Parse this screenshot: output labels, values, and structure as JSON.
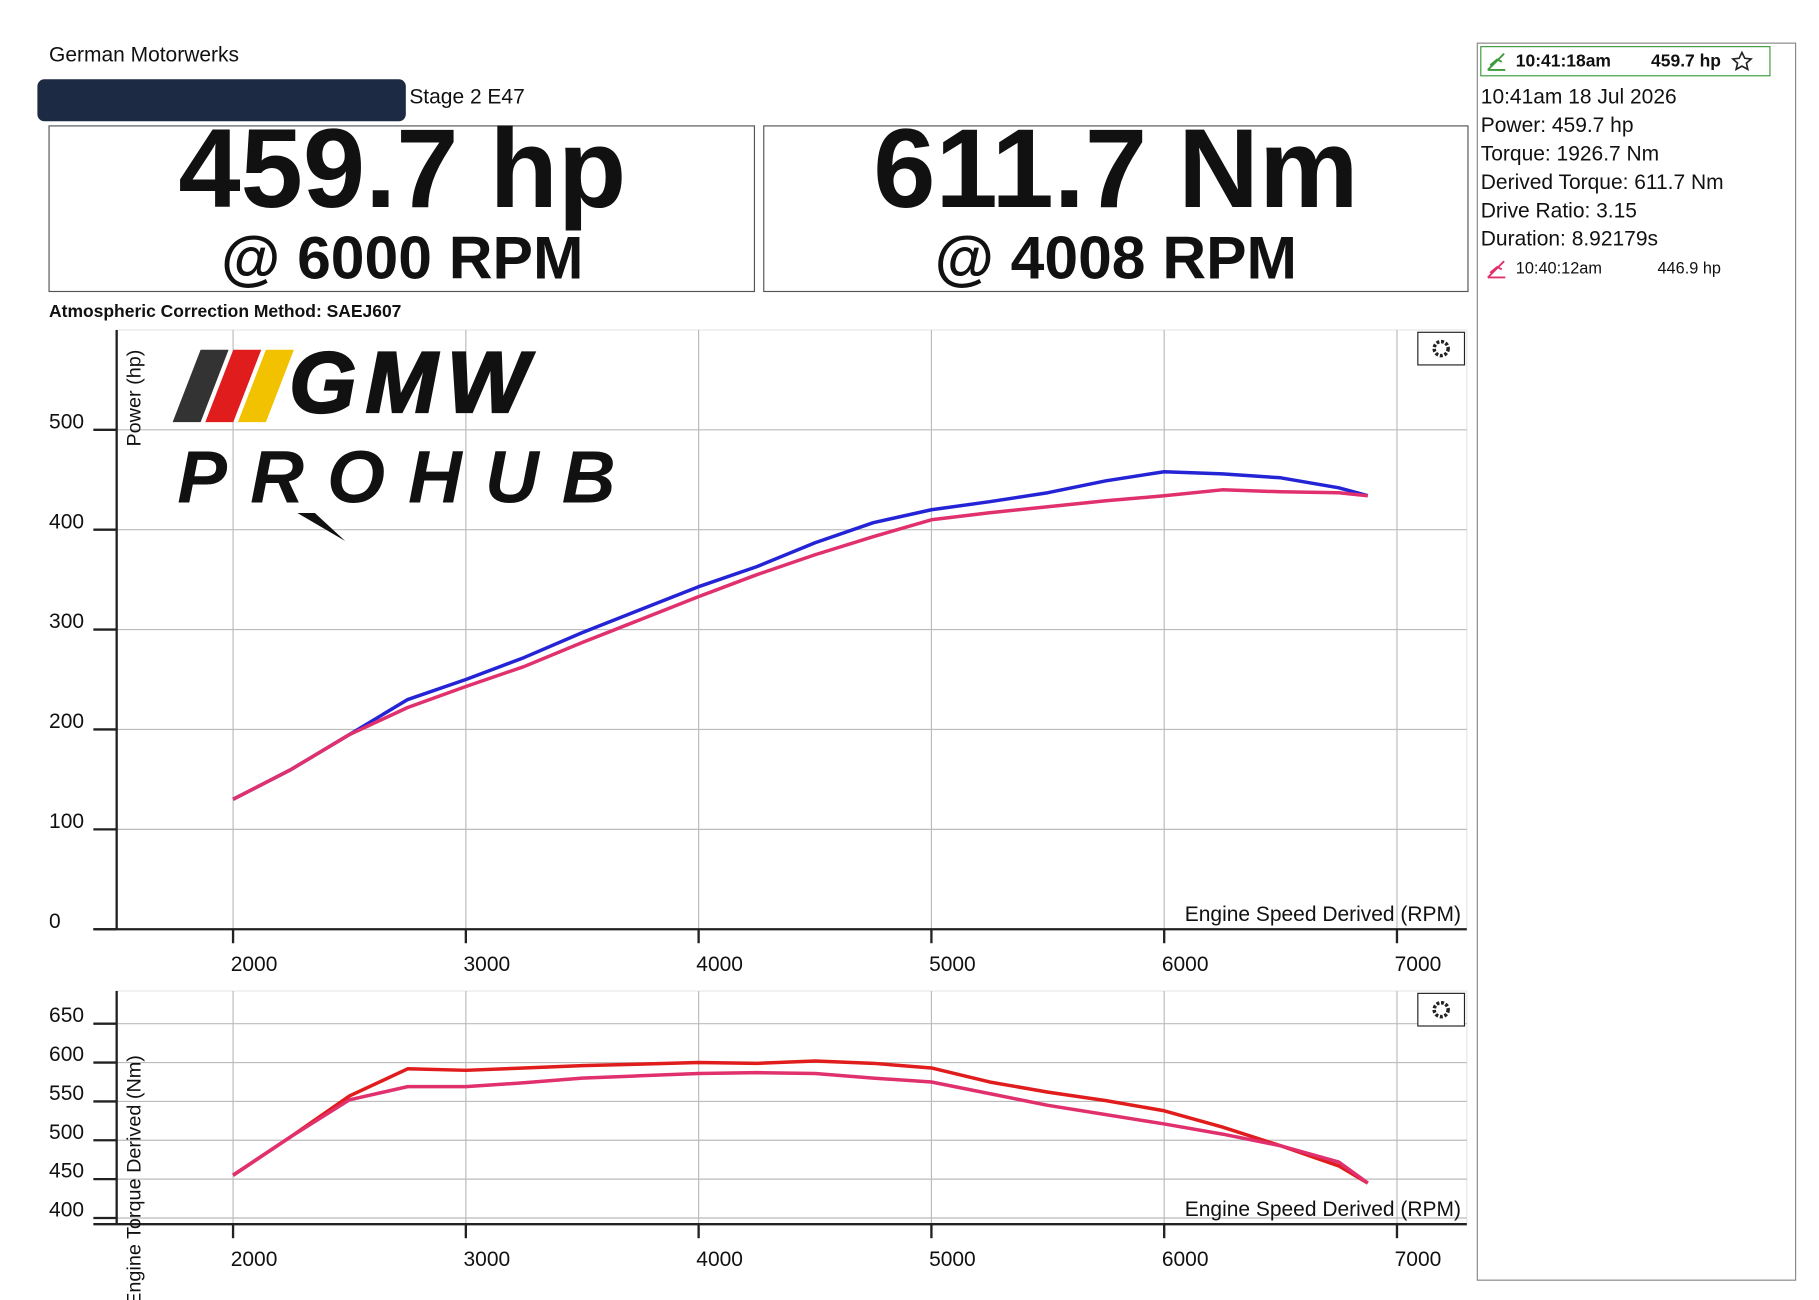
{
  "header": {
    "shop": "German Motorwerks",
    "run_name": "Stage 2 E47"
  },
  "summary": {
    "power": "459.7 hp",
    "power_rpm": "@ 6000 RPM",
    "torque": "611.7 Nm",
    "torque_rpm": "@ 4008 RPM",
    "correction": "Atmospheric Correction Method: SAEJ607"
  },
  "logo": {
    "brand": "GMW",
    "name": "PROHUB"
  },
  "sidebar": {
    "current": {
      "time": "10:41:18am",
      "peak": "459.7 hp"
    },
    "details": [
      "10:41am 18 Jul 2026",
      "Power: 459.7 hp",
      "Torque: 1926.7 Nm",
      "Derived Torque: 611.7 Nm",
      "Drive Ratio: 3.15",
      "Duration: 8.92179s"
    ],
    "other": {
      "time": "10:40:12am",
      "peak": "446.9 hp"
    }
  },
  "chart_data": [
    {
      "type": "line",
      "y_label": "Power (hp)",
      "x_label": "Engine Speed Derived (RPM)",
      "x": [
        2000,
        2250,
        2500,
        2750,
        3000,
        3250,
        3500,
        3750,
        4000,
        4250,
        4500,
        4750,
        5000,
        5250,
        5500,
        5750,
        6000,
        6250,
        6500,
        6750,
        6875
      ],
      "series": [
        {
          "color": "#2424d6",
          "values": [
            130,
            160,
            195,
            230,
            250,
            272,
            297,
            320,
            343,
            363,
            387,
            407,
            420,
            428,
            437,
            449,
            458,
            456,
            452,
            442,
            434
          ]
        },
        {
          "color": "#e0306e",
          "values": [
            130,
            160,
            195,
            222,
            243,
            263,
            287,
            310,
            333,
            355,
            375,
            393,
            410,
            417,
            423,
            429,
            434,
            440,
            438,
            437,
            434
          ]
        }
      ],
      "xlim": [
        1500,
        7300
      ],
      "xticks": [
        2000,
        3000,
        4000,
        5000,
        6000,
        7000
      ],
      "ylim": [
        0,
        600
      ],
      "yticks": [
        0,
        100,
        200,
        300,
        400,
        500
      ],
      "grid": true
    },
    {
      "type": "line",
      "y_label": "Engine Torque Derived (Nm)",
      "x_label": "Engine Speed Derived (RPM)",
      "x": [
        2000,
        2250,
        2500,
        2750,
        3000,
        3250,
        3500,
        3750,
        4000,
        4250,
        4500,
        4750,
        5000,
        5250,
        5500,
        5750,
        6000,
        6250,
        6500,
        6750,
        6875
      ],
      "series": [
        {
          "color": "#e01c1c",
          "values": [
            455,
            505,
            557,
            592,
            590,
            593,
            596,
            598,
            600,
            599,
            602,
            599,
            593,
            575,
            562,
            551,
            538,
            517,
            493,
            467,
            445
          ]
        },
        {
          "color": "#e0306e",
          "values": [
            455,
            505,
            552,
            569,
            569,
            574,
            580,
            583,
            586,
            587,
            586,
            580,
            575,
            560,
            545,
            533,
            521,
            508,
            493,
            472,
            445
          ]
        }
      ],
      "xlim": [
        1500,
        7300
      ],
      "xticks": [
        2000,
        3000,
        4000,
        5000,
        6000,
        7000
      ],
      "ylim": [
        392,
        692
      ],
      "yticks": [
        400,
        450,
        500,
        550,
        600,
        650
      ],
      "grid": true
    }
  ]
}
